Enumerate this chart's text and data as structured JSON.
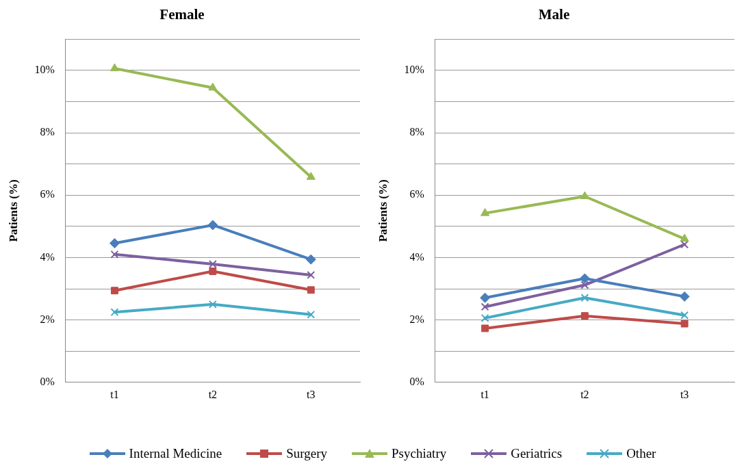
{
  "chart_data": [
    {
      "type": "line",
      "title": "Female",
      "ylabel": "Patients (%)",
      "categories": [
        "t1",
        "t2",
        "t3"
      ],
      "ylim": [
        0,
        11
      ],
      "yticks": [
        {
          "value": 0,
          "label": "0%"
        },
        {
          "value": 1,
          "label": null
        },
        {
          "value": 2,
          "label": "2%"
        },
        {
          "value": 3,
          "label": null
        },
        {
          "value": 4,
          "label": "4%"
        },
        {
          "value": 5,
          "label": null
        },
        {
          "value": 6,
          "label": "6%"
        },
        {
          "value": 7,
          "label": null
        },
        {
          "value": 8,
          "label": "8%"
        },
        {
          "value": 9,
          "label": null
        },
        {
          "value": 10,
          "label": "10%"
        },
        {
          "value": 11,
          "label": null
        }
      ],
      "grid": "y",
      "legend": "bottom",
      "line_style": "solid",
      "series": [
        {
          "name": "Internal Medicine",
          "color": "#4a7ebb",
          "marker": "diamond",
          "values": [
            4.46,
            5.04,
            3.94
          ]
        },
        {
          "name": "Surgery",
          "color": "#be4b48",
          "marker": "square",
          "values": [
            2.94,
            3.56,
            2.96
          ]
        },
        {
          "name": "Psychiatry",
          "color": "#98b954",
          "marker": "triangle",
          "values": [
            10.06,
            9.44,
            6.58
          ]
        },
        {
          "name": "Geriatrics",
          "color": "#7d60a0",
          "marker": "cross",
          "values": [
            4.1,
            3.79,
            3.44
          ]
        },
        {
          "name": "Other",
          "color": "#46aac5",
          "marker": "cross",
          "values": [
            2.25,
            2.5,
            2.17
          ]
        }
      ]
    },
    {
      "type": "line",
      "title": "Male",
      "ylabel": "Patients (%)",
      "categories": [
        "t1",
        "t2",
        "t3"
      ],
      "ylim": [
        0,
        11
      ],
      "yticks": [
        {
          "value": 0,
          "label": "0%"
        },
        {
          "value": 1,
          "label": null
        },
        {
          "value": 2,
          "label": "2%"
        },
        {
          "value": 3,
          "label": null
        },
        {
          "value": 4,
          "label": "4%"
        },
        {
          "value": 5,
          "label": null
        },
        {
          "value": 6,
          "label": "6%"
        },
        {
          "value": 7,
          "label": null
        },
        {
          "value": 8,
          "label": "8%"
        },
        {
          "value": 9,
          "label": null
        },
        {
          "value": 10,
          "label": "10%"
        },
        {
          "value": 11,
          "label": null
        }
      ],
      "grid": "y",
      "legend": "bottom",
      "line_style": "solid",
      "series": [
        {
          "name": "Internal Medicine",
          "color": "#4a7ebb",
          "marker": "diamond",
          "values": [
            2.71,
            3.33,
            2.75
          ]
        },
        {
          "name": "Surgery",
          "color": "#be4b48",
          "marker": "square",
          "values": [
            1.73,
            2.13,
            1.88
          ]
        },
        {
          "name": "Psychiatry",
          "color": "#98b954",
          "marker": "triangle",
          "values": [
            5.42,
            5.96,
            4.6
          ]
        },
        {
          "name": "Geriatrics",
          "color": "#7d60a0",
          "marker": "cross",
          "values": [
            2.42,
            3.12,
            4.42
          ]
        },
        {
          "name": "Other",
          "color": "#46aac5",
          "marker": "cross",
          "values": [
            2.06,
            2.71,
            2.15
          ]
        }
      ]
    }
  ]
}
